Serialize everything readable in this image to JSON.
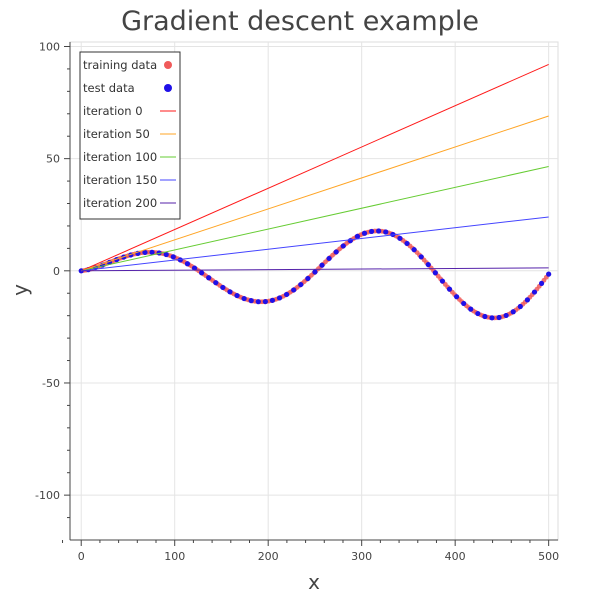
{
  "chart_data": {
    "type": "scatter",
    "title": "Gradient descent example",
    "xlabel": "x",
    "ylabel": "y",
    "xlim": [
      -12,
      510
    ],
    "ylim": [
      -120,
      102
    ],
    "xticks": [
      0,
      100,
      200,
      300,
      400,
      500
    ],
    "yticks": [
      100,
      50,
      0,
      -50,
      -100
    ],
    "grid": true,
    "legend_position": "top-left",
    "legend": [
      {
        "label": "training data",
        "kind": "marker",
        "color": "#f05a5a"
      },
      {
        "label": "test data",
        "kind": "marker",
        "color": "#1f10e8"
      },
      {
        "label": "iteration 0",
        "kind": "line",
        "color": "#ff1a1a"
      },
      {
        "label": "iteration 50",
        "kind": "line",
        "color": "#ffa526"
      },
      {
        "label": "iteration 100",
        "kind": "line",
        "color": "#66cc33"
      },
      {
        "label": "iteration 150",
        "kind": "line",
        "color": "#4444ff"
      },
      {
        "label": "iteration 200",
        "kind": "line",
        "color": "#5522aa"
      }
    ],
    "series": [
      {
        "name": "training data",
        "kind": "scatter",
        "color": "#f05a5a",
        "x_range": [
          0,
          500
        ],
        "count": 200,
        "function": "y = sqrt(x) * sin(x / 40)"
      },
      {
        "name": "test data",
        "kind": "scatter",
        "color": "#1f10e8",
        "x_range": [
          0,
          500
        ],
        "count": 67,
        "function": "y = sqrt(x) * sin(x / 40)"
      },
      {
        "name": "iteration 0",
        "kind": "line",
        "color": "#ff1a1a",
        "x": [
          0,
          500
        ],
        "y": [
          0,
          92
        ]
      },
      {
        "name": "iteration 50",
        "kind": "line",
        "color": "#ffa526",
        "x": [
          0,
          500
        ],
        "y": [
          0,
          69
        ]
      },
      {
        "name": "iteration 100",
        "kind": "line",
        "color": "#66cc33",
        "x": [
          0,
          500
        ],
        "y": [
          0,
          46.5
        ]
      },
      {
        "name": "iteration 150",
        "kind": "line",
        "color": "#4444ff",
        "x": [
          0,
          500
        ],
        "y": [
          0,
          24
        ]
      },
      {
        "name": "iteration 200",
        "kind": "line",
        "color": "#5522aa",
        "x": [
          0,
          500
        ],
        "y": [
          0,
          1.3
        ]
      }
    ]
  }
}
